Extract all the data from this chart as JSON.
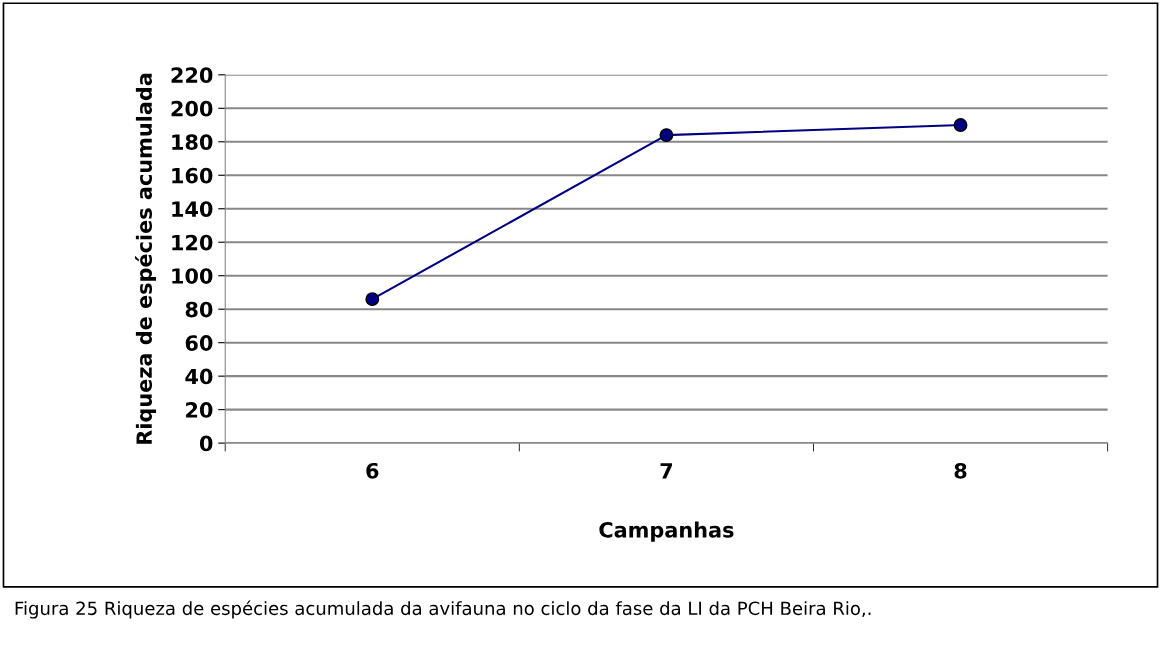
{
  "chart_data": {
    "type": "line",
    "xlabel": "Campanhas",
    "ylabel": "Riqueza de espécies acumulada",
    "categories": [
      "6",
      "7",
      "8"
    ],
    "series": [
      {
        "color": "#000080",
        "values": [
          86,
          184,
          190
        ]
      }
    ],
    "ylim": [
      0,
      220
    ],
    "yticks": [
      0,
      20,
      40,
      60,
      80,
      100,
      120,
      140,
      160,
      180,
      200,
      220
    ],
    "grid": "y",
    "marker": "circle",
    "line_style": "solid",
    "annotations": [
      "Figura 25 Riqueza de espécies acumulada da avifauna no ciclo da fase da LI da PCH Beira Rio,."
    ]
  }
}
